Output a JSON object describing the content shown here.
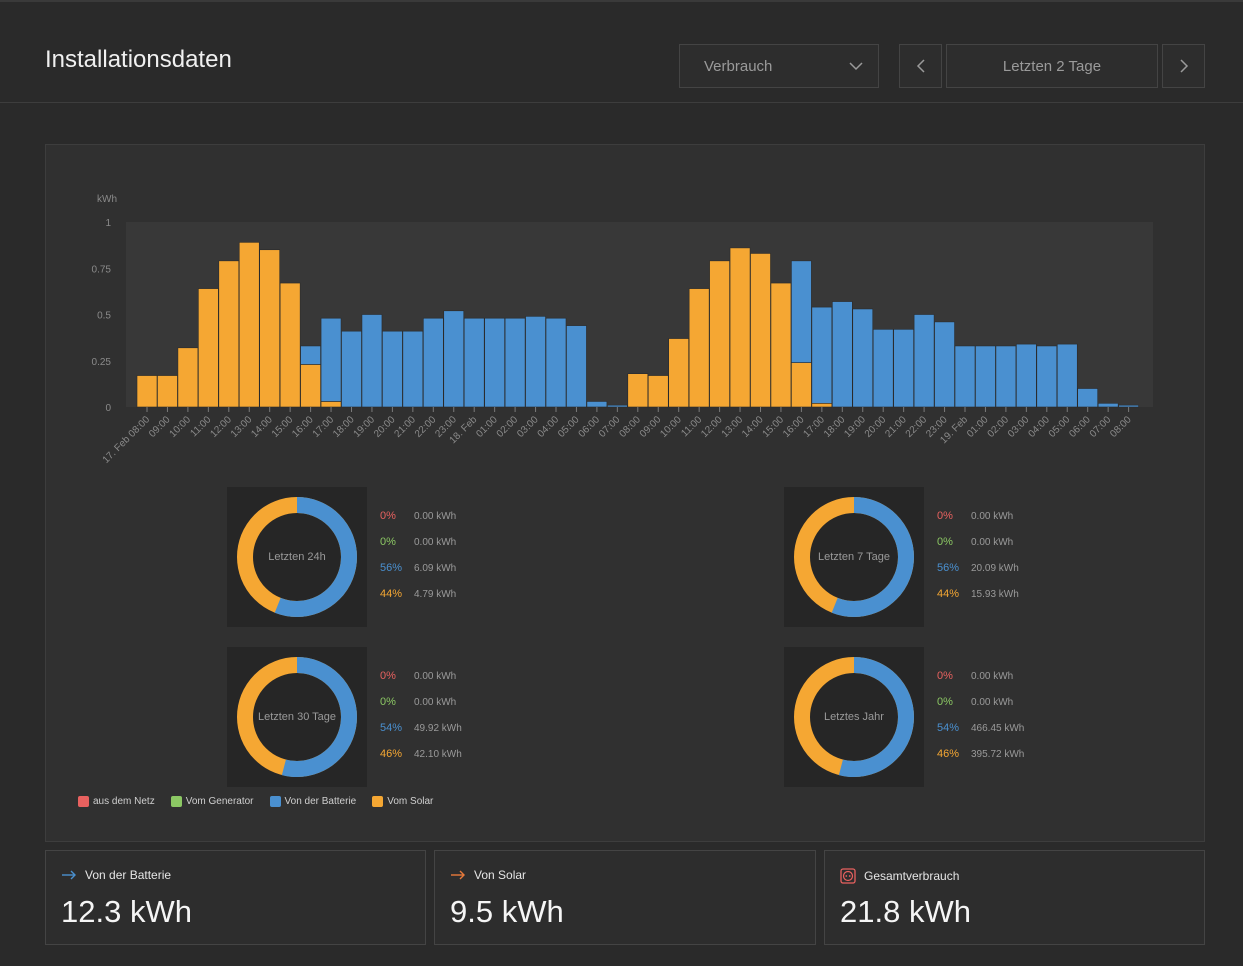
{
  "header": {
    "title": "Installationsdaten",
    "select_value": "Verbrauch",
    "range_label": "Letzten 2 Tage"
  },
  "colors": {
    "grid": "#e8615f",
    "generator": "#8cc864",
    "battery": "#4a90d0",
    "solar": "#f5a733"
  },
  "chart_data": {
    "type": "bar",
    "stacked": true,
    "ylabel": "kWh",
    "ylim": [
      0,
      1
    ],
    "yticks": [
      "0",
      "0.25",
      "0.5",
      "0.75",
      "1"
    ],
    "categories": [
      "17. Feb 08:00",
      "09:00",
      "10:00",
      "11:00",
      "12:00",
      "13:00",
      "14:00",
      "15:00",
      "16:00",
      "17:00",
      "18:00",
      "19:00",
      "20:00",
      "21:00",
      "22:00",
      "23:00",
      "18. Feb",
      "01:00",
      "02:00",
      "03:00",
      "04:00",
      "05:00",
      "06:00",
      "07:00",
      "08:00",
      "09:00",
      "10:00",
      "11:00",
      "12:00",
      "13:00",
      "14:00",
      "15:00",
      "16:00",
      "17:00",
      "18:00",
      "19:00",
      "20:00",
      "21:00",
      "22:00",
      "23:00",
      "19. Feb",
      "01:00",
      "02:00",
      "03:00",
      "04:00",
      "05:00",
      "06:00",
      "07:00",
      "08:00"
    ],
    "series": [
      {
        "name": "Vom Solar",
        "values": [
          0.17,
          0.17,
          0.32,
          0.64,
          0.79,
          0.89,
          0.85,
          0.67,
          0.23,
          0.03,
          0,
          0,
          0,
          0,
          0,
          0,
          0,
          0,
          0,
          0,
          0,
          0,
          0,
          0,
          0.18,
          0.17,
          0.37,
          0.64,
          0.79,
          0.86,
          0.83,
          0.67,
          0.24,
          0.02,
          0,
          0,
          0,
          0,
          0,
          0,
          0,
          0,
          0,
          0,
          0,
          0,
          0,
          0,
          0
        ]
      },
      {
        "name": "Von der Batterie",
        "values": [
          0,
          0,
          0,
          0,
          0,
          0,
          0,
          0,
          0.1,
          0.45,
          0.41,
          0.5,
          0.41,
          0.41,
          0.48,
          0.52,
          0.48,
          0.48,
          0.48,
          0.49,
          0.48,
          0.44,
          0.03,
          0.01,
          0,
          0,
          0,
          0,
          0,
          0,
          0,
          0,
          0.55,
          0.52,
          0.57,
          0.53,
          0.42,
          0.42,
          0.5,
          0.46,
          0.33,
          0.33,
          0.33,
          0.34,
          0.33,
          0.34,
          0.1,
          0.02,
          0.01
        ]
      }
    ]
  },
  "donuts": [
    {
      "label": "Letzten 24h",
      "stats": [
        {
          "pct": "0%",
          "value": "0.00 kWh"
        },
        {
          "pct": "0%",
          "value": "0.00 kWh"
        },
        {
          "pct": "56%",
          "value": "6.09 kWh"
        },
        {
          "pct": "44%",
          "value": "4.79 kWh"
        }
      ],
      "battery_share": 0.56
    },
    {
      "label": "Letzten 7 Tage",
      "stats": [
        {
          "pct": "0%",
          "value": "0.00 kWh"
        },
        {
          "pct": "0%",
          "value": "0.00 kWh"
        },
        {
          "pct": "56%",
          "value": "20.09 kWh"
        },
        {
          "pct": "44%",
          "value": "15.93 kWh"
        }
      ],
      "battery_share": 0.56
    },
    {
      "label": "Letzten 30 Tage",
      "stats": [
        {
          "pct": "0%",
          "value": "0.00 kWh"
        },
        {
          "pct": "0%",
          "value": "0.00 kWh"
        },
        {
          "pct": "54%",
          "value": "49.92 kWh"
        },
        {
          "pct": "46%",
          "value": "42.10 kWh"
        }
      ],
      "battery_share": 0.54
    },
    {
      "label": "Letztes Jahr",
      "stats": [
        {
          "pct": "0%",
          "value": "0.00 kWh"
        },
        {
          "pct": "0%",
          "value": "0.00 kWh"
        },
        {
          "pct": "54%",
          "value": "466.45 kWh"
        },
        {
          "pct": "46%",
          "value": "395.72 kWh"
        }
      ],
      "battery_share": 0.54
    }
  ],
  "legend": [
    "aus dem Netz",
    "Vom Generator",
    "Von der Batterie",
    "Vom Solar"
  ],
  "cards": [
    {
      "label": "Von der Batterie",
      "value": "12.3 kWh",
      "icon": "arrow-right-icon",
      "color": "#4a90d0"
    },
    {
      "label": "Von Solar",
      "value": "9.5 kWh",
      "icon": "arrow-right-icon",
      "color": "#e8793a"
    },
    {
      "label": "Gesamtverbrauch",
      "value": "21.8 kWh",
      "icon": "socket-icon",
      "color": "#e8615f"
    }
  ]
}
